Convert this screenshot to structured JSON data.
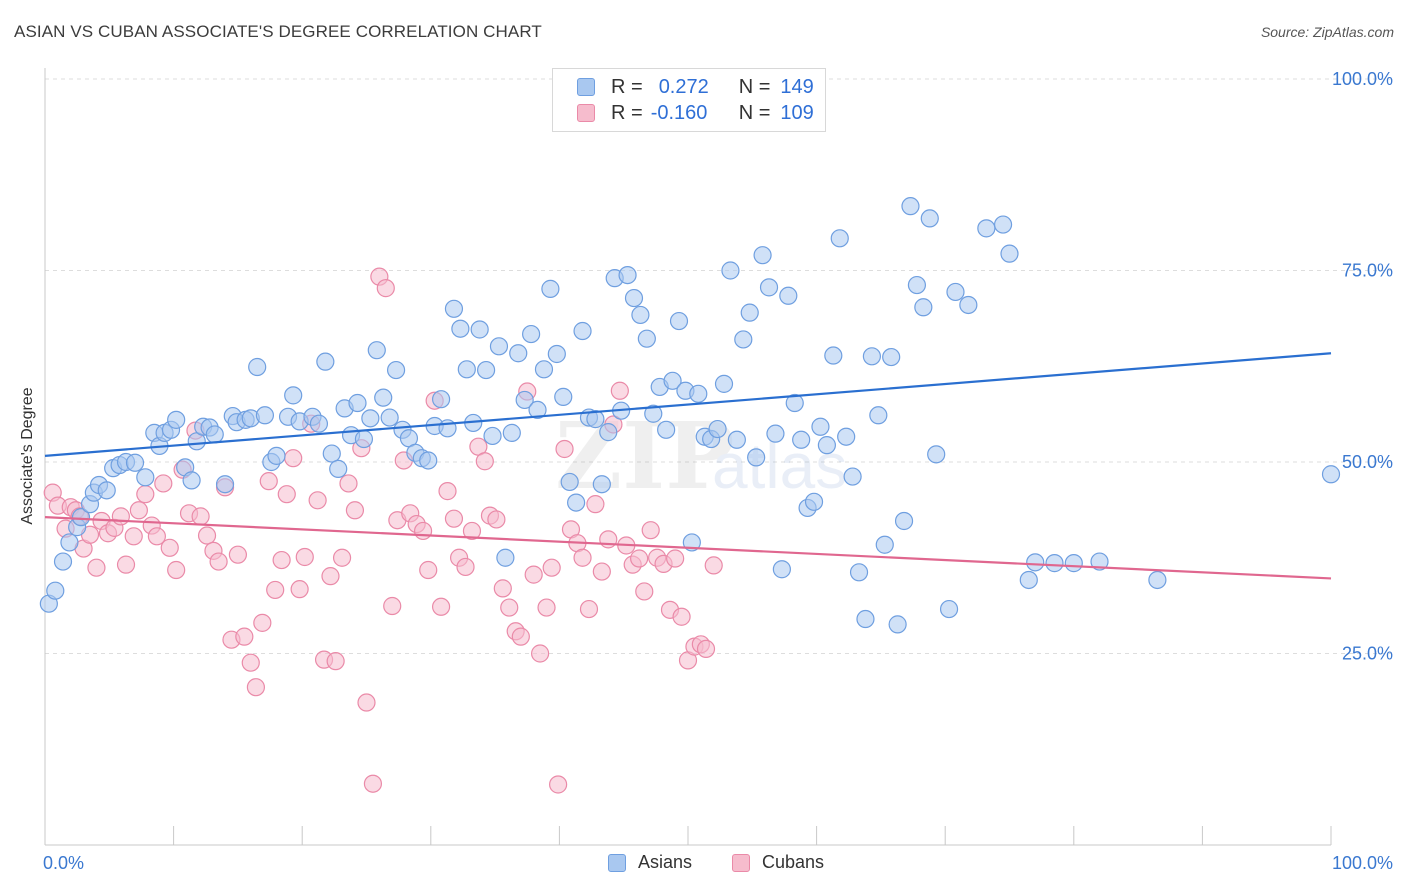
{
  "header": {
    "title": "ASIAN VS CUBAN ASSOCIATE'S DEGREE CORRELATION CHART",
    "source": "Source: ZipAtlas.com"
  },
  "legend": {
    "asians": {
      "r_label": "R =",
      "r_value": "0.272",
      "n_label": "N =",
      "n_value": "149"
    },
    "cubans": {
      "r_label": "R =",
      "r_value": "-0.160",
      "n_label": "N =",
      "n_value": "109"
    }
  },
  "bottom_legend": {
    "asians": "Asians",
    "cubans": "Cubans"
  },
  "colors": {
    "asians_fill": "#a9c8f0",
    "asians_stroke": "#6f9fe0",
    "asians_line": "#2a6fd0",
    "cubans_fill": "#f6bccd",
    "cubans_stroke": "#ea8aa8",
    "cubans_line": "#e0678f",
    "tick_label": "#3a78d0",
    "grid": "#dddddd"
  },
  "watermark": {
    "zip": "ZIP",
    "atlas": "atlas"
  },
  "chart_data": {
    "type": "scatter",
    "title": "ASIAN VS CUBAN ASSOCIATE'S DEGREE CORRELATION CHART",
    "xlabel": "",
    "ylabel": "Associate's Degree",
    "xlim": [
      0,
      100
    ],
    "ylim": [
      0,
      100
    ],
    "x_tick_labels": [
      "0.0%",
      "100.0%"
    ],
    "y_tick_labels": [
      "25.0%",
      "50.0%",
      "75.0%",
      "100.0%"
    ],
    "y_ticks": [
      25,
      50,
      75,
      100
    ],
    "series": [
      {
        "name": "Asians",
        "r": 0.272,
        "n": 149,
        "trend": {
          "x": [
            0,
            100
          ],
          "y": [
            50.8,
            64.2
          ]
        },
        "points": [
          [
            0.3,
            31.5
          ],
          [
            0.8,
            33.2
          ],
          [
            1.4,
            37.0
          ],
          [
            1.9,
            39.5
          ],
          [
            2.5,
            41.5
          ],
          [
            2.8,
            42.8
          ],
          [
            3.5,
            44.5
          ],
          [
            3.8,
            46.0
          ],
          [
            4.2,
            47.0
          ],
          [
            4.8,
            46.3
          ],
          [
            5.3,
            49.2
          ],
          [
            5.8,
            49.6
          ],
          [
            6.3,
            50.0
          ],
          [
            7.0,
            49.9
          ],
          [
            7.8,
            48.0
          ],
          [
            8.5,
            53.8
          ],
          [
            8.9,
            52.1
          ],
          [
            9.3,
            53.8
          ],
          [
            9.8,
            54.2
          ],
          [
            10.2,
            55.5
          ],
          [
            10.9,
            49.3
          ],
          [
            11.4,
            47.6
          ],
          [
            11.8,
            52.7
          ],
          [
            12.3,
            54.6
          ],
          [
            12.8,
            54.5
          ],
          [
            13.2,
            53.6
          ],
          [
            14.0,
            47.1
          ],
          [
            14.6,
            56.0
          ],
          [
            14.9,
            55.2
          ],
          [
            15.6,
            55.5
          ],
          [
            16.0,
            55.7
          ],
          [
            16.5,
            62.4
          ],
          [
            17.1,
            56.1
          ],
          [
            17.6,
            50.0
          ],
          [
            18.0,
            50.8
          ],
          [
            18.9,
            55.9
          ],
          [
            19.3,
            58.7
          ],
          [
            19.8,
            55.3
          ],
          [
            20.8,
            55.9
          ],
          [
            21.3,
            55.0
          ],
          [
            21.8,
            63.1
          ],
          [
            22.3,
            51.1
          ],
          [
            22.8,
            49.1
          ],
          [
            23.3,
            57.0
          ],
          [
            23.8,
            53.5
          ],
          [
            24.3,
            57.7
          ],
          [
            24.8,
            53.0
          ],
          [
            25.3,
            55.7
          ],
          [
            25.8,
            64.6
          ],
          [
            26.3,
            58.4
          ],
          [
            26.8,
            55.8
          ],
          [
            27.3,
            62.0
          ],
          [
            27.8,
            54.2
          ],
          [
            28.3,
            53.1
          ],
          [
            28.8,
            51.2
          ],
          [
            29.3,
            50.5
          ],
          [
            29.8,
            50.2
          ],
          [
            30.3,
            54.7
          ],
          [
            30.8,
            58.2
          ],
          [
            31.3,
            54.4
          ],
          [
            31.8,
            70.0
          ],
          [
            32.3,
            67.4
          ],
          [
            32.8,
            62.1
          ],
          [
            33.3,
            55.1
          ],
          [
            33.8,
            67.3
          ],
          [
            34.3,
            62.0
          ],
          [
            34.8,
            53.4
          ],
          [
            35.3,
            65.1
          ],
          [
            35.8,
            37.5
          ],
          [
            36.3,
            53.8
          ],
          [
            36.8,
            64.2
          ],
          [
            37.3,
            58.1
          ],
          [
            37.8,
            66.7
          ],
          [
            38.3,
            56.8
          ],
          [
            38.8,
            62.1
          ],
          [
            39.3,
            72.6
          ],
          [
            39.8,
            64.1
          ],
          [
            40.3,
            58.5
          ],
          [
            40.8,
            47.4
          ],
          [
            41.3,
            44.7
          ],
          [
            41.8,
            67.1
          ],
          [
            42.3,
            55.8
          ],
          [
            42.8,
            55.6
          ],
          [
            43.3,
            47.1
          ],
          [
            43.8,
            53.9
          ],
          [
            44.3,
            74.0
          ],
          [
            44.8,
            56.7
          ],
          [
            45.3,
            74.4
          ],
          [
            45.8,
            71.4
          ],
          [
            46.3,
            69.2
          ],
          [
            46.8,
            66.1
          ],
          [
            47.3,
            56.3
          ],
          [
            47.8,
            59.8
          ],
          [
            48.3,
            54.2
          ],
          [
            48.8,
            60.6
          ],
          [
            49.3,
            68.4
          ],
          [
            49.8,
            59.3
          ],
          [
            50.3,
            39.5
          ],
          [
            50.8,
            58.9
          ],
          [
            51.3,
            53.3
          ],
          [
            51.8,
            53.0
          ],
          [
            52.3,
            54.3
          ],
          [
            52.8,
            60.2
          ],
          [
            53.3,
            75.0
          ],
          [
            53.8,
            52.9
          ],
          [
            54.3,
            66.0
          ],
          [
            54.8,
            69.5
          ],
          [
            55.3,
            50.6
          ],
          [
            55.8,
            77.0
          ],
          [
            56.3,
            72.8
          ],
          [
            56.8,
            53.7
          ],
          [
            57.3,
            36.0
          ],
          [
            57.8,
            71.7
          ],
          [
            58.3,
            57.7
          ],
          [
            58.8,
            52.9
          ],
          [
            59.3,
            44.0
          ],
          [
            59.8,
            44.8
          ],
          [
            60.3,
            54.6
          ],
          [
            60.8,
            52.2
          ],
          [
            61.3,
            63.9
          ],
          [
            61.8,
            79.2
          ],
          [
            62.3,
            53.3
          ],
          [
            62.8,
            48.1
          ],
          [
            63.3,
            35.6
          ],
          [
            63.8,
            29.5
          ],
          [
            64.3,
            63.8
          ],
          [
            64.8,
            56.1
          ],
          [
            65.3,
            39.2
          ],
          [
            65.8,
            63.7
          ],
          [
            66.3,
            28.8
          ],
          [
            66.8,
            42.3
          ],
          [
            67.3,
            83.4
          ],
          [
            67.8,
            73.1
          ],
          [
            68.3,
            70.2
          ],
          [
            68.8,
            81.8
          ],
          [
            69.3,
            51.0
          ],
          [
            70.3,
            30.8
          ],
          [
            70.8,
            72.2
          ],
          [
            71.8,
            70.5
          ],
          [
            73.2,
            80.5
          ],
          [
            74.5,
            81.0
          ],
          [
            75.0,
            77.2
          ],
          [
            76.5,
            34.6
          ],
          [
            77.0,
            36.9
          ],
          [
            78.5,
            36.8
          ],
          [
            80.0,
            36.8
          ],
          [
            82.0,
            37.0
          ],
          [
            86.5,
            34.6
          ],
          [
            100.0,
            48.4
          ]
        ]
      },
      {
        "name": "Cubans",
        "r": -0.16,
        "n": 109,
        "trend": {
          "x": [
            0,
            100
          ],
          "y": [
            42.8,
            34.8
          ]
        },
        "points": [
          [
            0.6,
            46.0
          ],
          [
            1.0,
            44.3
          ],
          [
            1.6,
            41.3
          ],
          [
            2.0,
            44.1
          ],
          [
            2.4,
            43.7
          ],
          [
            2.7,
            42.9
          ],
          [
            3.0,
            38.7
          ],
          [
            3.5,
            40.5
          ],
          [
            4.0,
            36.2
          ],
          [
            4.4,
            42.3
          ],
          [
            4.9,
            40.7
          ],
          [
            5.4,
            41.4
          ],
          [
            5.9,
            42.9
          ],
          [
            6.3,
            36.6
          ],
          [
            6.9,
            40.3
          ],
          [
            7.3,
            43.7
          ],
          [
            7.8,
            45.8
          ],
          [
            8.3,
            41.7
          ],
          [
            8.7,
            40.3
          ],
          [
            9.2,
            47.2
          ],
          [
            9.7,
            38.8
          ],
          [
            10.2,
            35.9
          ],
          [
            10.7,
            49.0
          ],
          [
            11.2,
            43.3
          ],
          [
            11.7,
            54.1
          ],
          [
            12.1,
            42.9
          ],
          [
            12.6,
            40.4
          ],
          [
            13.1,
            38.4
          ],
          [
            13.5,
            37.0
          ],
          [
            14.0,
            46.7
          ],
          [
            14.5,
            26.8
          ],
          [
            15.0,
            37.9
          ],
          [
            15.5,
            27.2
          ],
          [
            16.0,
            23.8
          ],
          [
            16.4,
            20.6
          ],
          [
            16.9,
            29.0
          ],
          [
            17.4,
            47.5
          ],
          [
            17.9,
            33.3
          ],
          [
            18.4,
            37.2
          ],
          [
            18.8,
            45.8
          ],
          [
            19.3,
            50.5
          ],
          [
            19.8,
            33.4
          ],
          [
            20.2,
            37.6
          ],
          [
            20.7,
            55.0
          ],
          [
            21.2,
            45.0
          ],
          [
            21.7,
            24.2
          ],
          [
            22.2,
            35.1
          ],
          [
            22.6,
            24.0
          ],
          [
            23.1,
            37.5
          ],
          [
            23.6,
            47.2
          ],
          [
            24.1,
            43.7
          ],
          [
            24.6,
            51.8
          ],
          [
            25.0,
            18.6
          ],
          [
            25.5,
            8.0
          ],
          [
            26.0,
            74.2
          ],
          [
            26.5,
            72.7
          ],
          [
            27.0,
            31.2
          ],
          [
            27.4,
            42.4
          ],
          [
            27.9,
            50.2
          ],
          [
            28.4,
            43.3
          ],
          [
            28.9,
            41.9
          ],
          [
            29.4,
            41.0
          ],
          [
            29.8,
            35.9
          ],
          [
            30.3,
            58.0
          ],
          [
            30.8,
            31.1
          ],
          [
            31.3,
            46.2
          ],
          [
            31.8,
            42.6
          ],
          [
            32.2,
            37.5
          ],
          [
            32.7,
            36.3
          ],
          [
            33.2,
            41.0
          ],
          [
            33.7,
            52.0
          ],
          [
            34.2,
            50.1
          ],
          [
            34.6,
            43.0
          ],
          [
            35.1,
            42.5
          ],
          [
            35.6,
            33.5
          ],
          [
            36.1,
            31.0
          ],
          [
            36.6,
            27.9
          ],
          [
            37.0,
            27.2
          ],
          [
            37.5,
            59.2
          ],
          [
            38.0,
            35.3
          ],
          [
            38.5,
            25.0
          ],
          [
            39.0,
            31.0
          ],
          [
            39.4,
            36.2
          ],
          [
            39.9,
            7.9
          ],
          [
            40.4,
            51.7
          ],
          [
            40.9,
            41.2
          ],
          [
            41.4,
            39.4
          ],
          [
            41.8,
            37.5
          ],
          [
            42.3,
            30.8
          ],
          [
            42.8,
            44.5
          ],
          [
            43.3,
            35.7
          ],
          [
            43.8,
            39.9
          ],
          [
            44.2,
            54.9
          ],
          [
            44.7,
            59.3
          ],
          [
            45.2,
            39.1
          ],
          [
            45.7,
            36.6
          ],
          [
            46.2,
            37.4
          ],
          [
            46.6,
            33.1
          ],
          [
            47.1,
            41.1
          ],
          [
            47.6,
            37.5
          ],
          [
            48.1,
            36.7
          ],
          [
            48.6,
            30.7
          ],
          [
            49.0,
            37.4
          ],
          [
            49.5,
            29.8
          ],
          [
            50.0,
            24.1
          ],
          [
            50.5,
            25.9
          ],
          [
            51.0,
            26.2
          ],
          [
            51.4,
            25.6
          ],
          [
            52.0,
            36.5
          ]
        ]
      }
    ]
  }
}
